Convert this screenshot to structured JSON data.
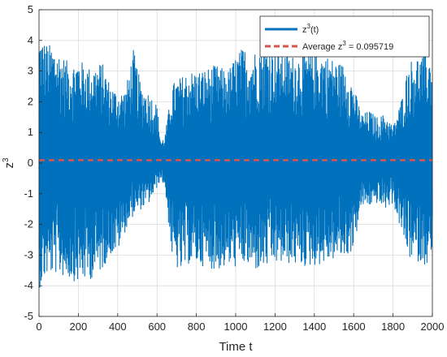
{
  "chart_data": {
    "type": "line",
    "xlabel": "Time t",
    "ylabel": "z",
    "ylabel_sup": "3",
    "xlim": [
      0,
      2000
    ],
    "ylim": [
      -5,
      5
    ],
    "xticks": [
      0,
      200,
      400,
      600,
      800,
      1000,
      1200,
      1400,
      1600,
      1800,
      2000
    ],
    "yticks": [
      -5,
      -4,
      -3,
      -2,
      -1,
      0,
      1,
      2,
      3,
      4,
      5
    ],
    "grid": true,
    "legend_position": "top-right",
    "series": [
      {
        "name": "z",
        "name_sup": "3",
        "name_suffix": "(t)",
        "style": "solid",
        "color": "#0072BD",
        "envelope": {
          "x": [
            0,
            40,
            80,
            120,
            160,
            200,
            260,
            320,
            360,
            400,
            440,
            480,
            520,
            560,
            600,
            620,
            640,
            680,
            720,
            760,
            800,
            860,
            900,
            960,
            1000,
            1040,
            1080,
            1120,
            1200,
            1280,
            1360,
            1440,
            1520,
            1560,
            1600,
            1640,
            1680,
            1720,
            1760,
            1800,
            1840,
            1880,
            1920,
            1960,
            2000
          ],
          "upper": [
            4.2,
            3.9,
            3.8,
            3.5,
            3.2,
            3.4,
            3.1,
            3.3,
            2.6,
            2.3,
            2.4,
            3.7,
            2.5,
            2.3,
            1.9,
            0.7,
            0.9,
            2.6,
            2.8,
            3.0,
            3.0,
            3.1,
            3.2,
            3.0,
            3.5,
            3.8,
            3.5,
            3.9,
            3.8,
            3.5,
            3.6,
            3.6,
            3.3,
            3.2,
            2.5,
            1.6,
            1.7,
            1.5,
            1.6,
            1.2,
            2.0,
            3.3,
            3.5,
            3.5,
            3.5
          ],
          "lower": [
            -4.1,
            -3.7,
            -3.6,
            -3.7,
            -3.8,
            -3.9,
            -3.8,
            -3.5,
            -3.0,
            -2.9,
            -2.2,
            -1.7,
            -1.5,
            -1.3,
            -0.8,
            -0.5,
            -0.8,
            -3.3,
            -3.6,
            -3.3,
            -3.3,
            -3.4,
            -3.5,
            -3.4,
            -3.4,
            -3.3,
            -3.5,
            -3.5,
            -3.3,
            -3.3,
            -3.4,
            -3.3,
            -3.1,
            -3.1,
            -2.8,
            -1.4,
            -1.4,
            -1.3,
            -1.5,
            -1.3,
            -2.2,
            -3.1,
            -3.2,
            -3.3,
            -3.3
          ]
        }
      },
      {
        "name": "Average z",
        "name_sup": "3",
        "name_suffix": " = 0.095719",
        "style": "dashed",
        "color": "#D9534F",
        "value": 0.095719
      }
    ]
  }
}
